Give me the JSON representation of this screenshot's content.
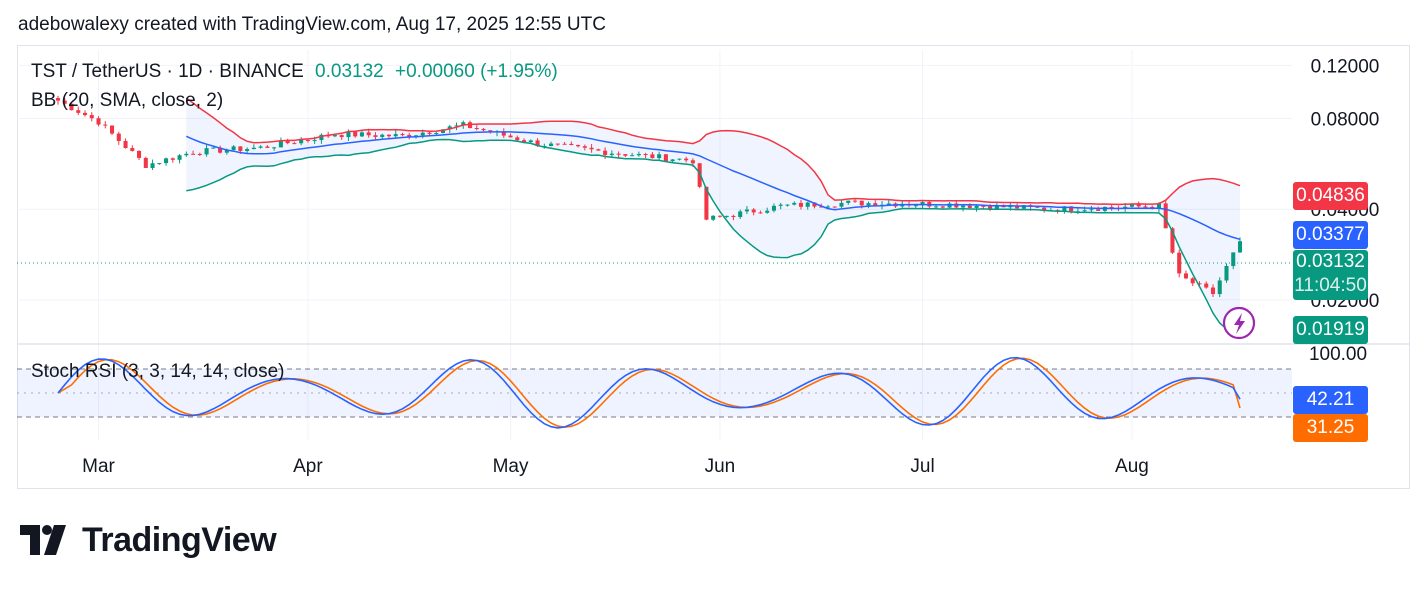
{
  "attribution": "adebowalexy created with TradingView.com, Aug 17, 2025 12:55 UTC",
  "legend": {
    "symbol": "TST / TetherUS · 1D · BINANCE",
    "price": "0.03132",
    "change": "+0.00060 (+1.95%)",
    "bb": "BB (20, SMA, close, 2)",
    "stoch": "Stoch RSI (3, 3, 14, 14, close)"
  },
  "brand": "TradingView",
  "price_labels": {
    "bb_upper": "0.04836",
    "bb_basis": "0.03377",
    "last_price": "0.03132",
    "countdown": "11:04:50",
    "bb_lower": "0.01919",
    "stoch_k": "42.21",
    "stoch_d": "31.25"
  },
  "colors": {
    "up": "#089981",
    "down": "#f23645",
    "bb_upper": "#f23645",
    "bb_basis": "#2962ff",
    "bb_lower": "#089981",
    "stoch_k": "#2962ff",
    "stoch_d": "#ff6d00",
    "flash_icon": "#9c27b0"
  },
  "icons": {
    "alert": "lightning-icon",
    "logo": "tradingview-logo-icon"
  },
  "chart_data": [
    {
      "type": "candlestick",
      "title": "TST / TetherUS · 1D · BINANCE",
      "y_ticks": [
        "0.12000",
        "0.08000",
        "0.04000",
        "0.02000"
      ],
      "x_ticks": [
        "Mar",
        "Apr",
        "May",
        "Jun",
        "Jul",
        "Aug"
      ],
      "scale": "log",
      "ylim": [
        0.0145,
        0.135
      ],
      "series_close_approx": [
        {
          "date": "Feb 23",
          "close": 0.105
        },
        {
          "date": "Mar 1",
          "close": 0.078
        },
        {
          "date": "Mar 8",
          "close": 0.056
        },
        {
          "date": "Mar 15",
          "close": 0.062
        },
        {
          "date": "Mar 25",
          "close": 0.064
        },
        {
          "date": "Apr 5",
          "close": 0.071
        },
        {
          "date": "Apr 15",
          "close": 0.07
        },
        {
          "date": "Apr 24",
          "close": 0.076
        },
        {
          "date": "May 5",
          "close": 0.066
        },
        {
          "date": "May 15",
          "close": 0.062
        },
        {
          "date": "May 28",
          "close": 0.058
        },
        {
          "date": "May 30",
          "close": 0.037
        },
        {
          "date": "Jun 10",
          "close": 0.041
        },
        {
          "date": "Jun 20",
          "close": 0.042
        },
        {
          "date": "Jul 5",
          "close": 0.0415
        },
        {
          "date": "Jul 20",
          "close": 0.04
        },
        {
          "date": "Aug 5",
          "close": 0.041
        },
        {
          "date": "Aug 8",
          "close": 0.024
        },
        {
          "date": "Aug 13",
          "close": 0.021
        },
        {
          "date": "Aug 17",
          "close": 0.03132
        }
      ],
      "bollinger": {
        "upper": 0.04836,
        "basis": 0.03377,
        "lower": 0.01919
      }
    },
    {
      "type": "line",
      "title": "Stoch RSI (3, 3, 14, 14, close)",
      "y_ticks": [
        "100.00"
      ],
      "ylim": [
        0,
        100
      ],
      "bands": [
        20,
        80
      ],
      "series": [
        {
          "name": "K",
          "last": 42.21
        },
        {
          "name": "D",
          "last": 31.25
        }
      ]
    }
  ]
}
